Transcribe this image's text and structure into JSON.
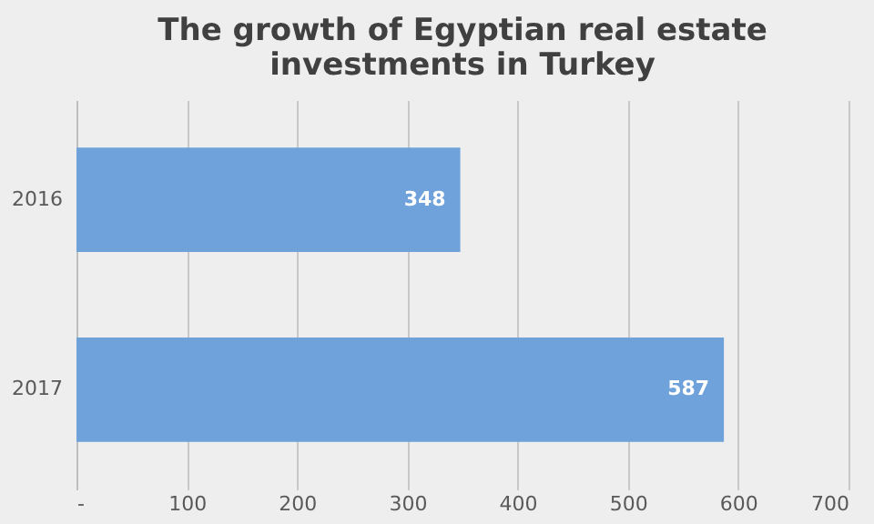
{
  "chart_data": {
    "type": "bar",
    "orientation": "horizontal",
    "title": "The growth of Egyptian real estate\ninvestments in Turkey",
    "categories": [
      "2016",
      "2017"
    ],
    "values": [
      348,
      587
    ],
    "color": "#6fa1db",
    "xlim": [
      0,
      700
    ],
    "xticks": [
      {
        "value": 0,
        "label": "-"
      },
      100,
      200,
      300,
      400,
      500,
      600,
      700
    ],
    "grid": "x",
    "data_labels": true
  }
}
